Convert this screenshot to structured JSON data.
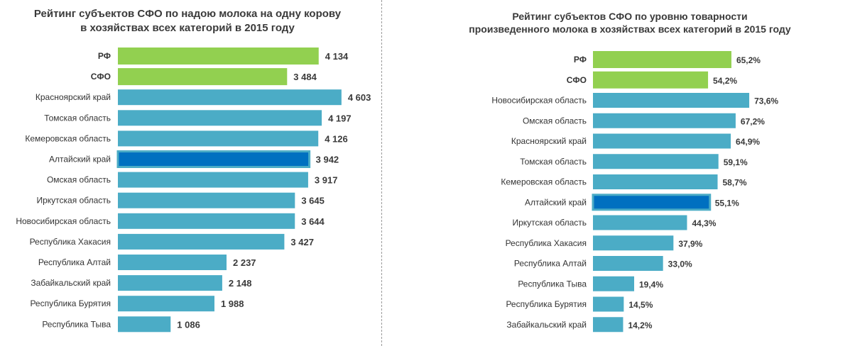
{
  "colors": {
    "aggregate": "#92d050",
    "region": "#4bacc6",
    "highlight": "#0070c0",
    "highlight_border": "#4bacc6"
  },
  "chart_data": [
    {
      "type": "bar",
      "orientation": "horizontal",
      "title": [
        "Рейтинг субъектов СФО по надою молока на одну корову",
        "в хозяйствах всех категорий в 2015 году"
      ],
      "categories": [
        "РФ",
        "СФО",
        "Красноярский край",
        "Томская область",
        "Кемеровская область",
        "Алтайский край",
        "Омская область",
        "Иркутская область",
        "Новосибирская область",
        "Республика Хакасия",
        "Республика Алтай",
        "Забайкальский край",
        "Республика Бурятия",
        "Республика Тыва"
      ],
      "values": [
        4134,
        3484,
        4603,
        4197,
        4126,
        3942,
        3917,
        3645,
        3644,
        3427,
        2237,
        2148,
        1988,
        1086
      ],
      "value_labels": [
        "4 134",
        "3 484",
        "4 603",
        "4 197",
        "4 126",
        "3 942",
        "3 917",
        "3 645",
        "3 644",
        "3 427",
        "2 237",
        "2 148",
        "1 988",
        "1 086"
      ],
      "bar_kinds": [
        "aggregate",
        "aggregate",
        "region",
        "region",
        "region",
        "highlight",
        "region",
        "region",
        "region",
        "region",
        "region",
        "region",
        "region",
        "region"
      ],
      "xlim": [
        0,
        5000
      ],
      "grid": false,
      "legend": "none"
    },
    {
      "type": "bar",
      "orientation": "horizontal",
      "title": [
        "Рейтинг субъектов СФО по уровню товарности",
        "произведенного молока в хозяйствах всех категорий в 2015 году"
      ],
      "categories": [
        "РФ",
        "СФО",
        "Новосибирская область",
        "Омская область",
        "Красноярский край",
        "Томская область",
        "Кемеровская область",
        "Алтайский край",
        "Иркутская область",
        "Республика Хакасия",
        "Республика Алтай",
        "Республика Тыва",
        "Республика Бурятия",
        "Забайкальский край"
      ],
      "values": [
        65.2,
        54.2,
        73.6,
        67.2,
        64.9,
        59.1,
        58.7,
        55.1,
        44.3,
        37.9,
        33.0,
        19.4,
        14.5,
        14.2
      ],
      "value_labels": [
        "65,2%",
        "54,2%",
        "73,6%",
        "67,2%",
        "64,9%",
        "59,1%",
        "58,7%",
        "55,1%",
        "44,3%",
        "37,9%",
        "33,0%",
        "19,4%",
        "14,5%",
        "14,2%"
      ],
      "bar_kinds": [
        "aggregate",
        "aggregate",
        "region",
        "region",
        "region",
        "region",
        "region",
        "highlight",
        "region",
        "region",
        "region",
        "region",
        "region",
        "region"
      ],
      "xlim": [
        0,
        100
      ],
      "unit": "%",
      "grid": false,
      "legend": "none"
    }
  ]
}
